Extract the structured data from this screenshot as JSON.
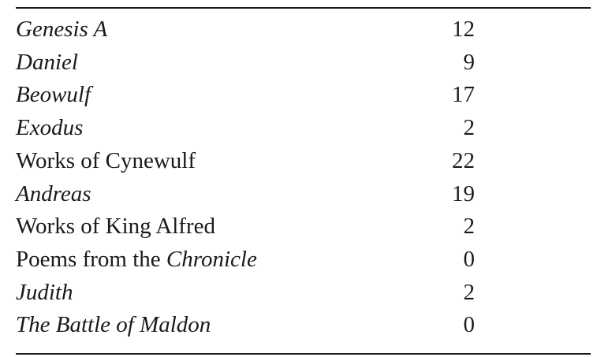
{
  "table": {
    "rows": [
      {
        "title": [
          {
            "text": "Genesis A",
            "italic": true
          }
        ],
        "count": "12"
      },
      {
        "title": [
          {
            "text": "Daniel",
            "italic": true
          }
        ],
        "count": "9"
      },
      {
        "title": [
          {
            "text": "Beowulf",
            "italic": true
          }
        ],
        "count": "17"
      },
      {
        "title": [
          {
            "text": "Exodus",
            "italic": true
          }
        ],
        "count": "2"
      },
      {
        "title": [
          {
            "text": "Works of Cynewulf",
            "italic": false
          }
        ],
        "count": "22"
      },
      {
        "title": [
          {
            "text": "Andreas",
            "italic": true
          }
        ],
        "count": "19"
      },
      {
        "title": [
          {
            "text": "Works of King Alfred",
            "italic": false
          }
        ],
        "count": "2"
      },
      {
        "title": [
          {
            "text": "Poems from the ",
            "italic": false
          },
          {
            "text": "Chronicle",
            "italic": true
          }
        ],
        "count": "0"
      },
      {
        "title": [
          {
            "text": "Judith",
            "italic": true
          }
        ],
        "count": "2"
      },
      {
        "title": [
          {
            "text": "The Battle of Maldon",
            "italic": true
          }
        ],
        "count": "0"
      }
    ]
  }
}
